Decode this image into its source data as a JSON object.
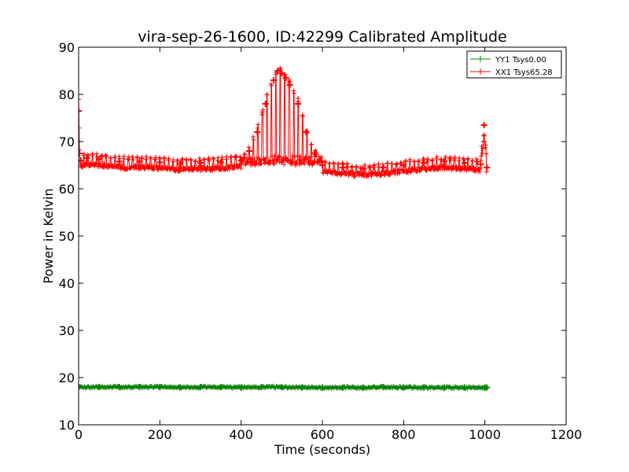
{
  "chart_data": {
    "type": "line",
    "title": "vira-sep-26-1600, ID:42299 Calibrated Amplitude",
    "xlabel": "Time (seconds)",
    "ylabel": "Power in Kelvin",
    "xlim": [
      0,
      1200
    ],
    "ylim": [
      10,
      90
    ],
    "xticks": [
      0,
      200,
      400,
      600,
      800,
      1000,
      1200
    ],
    "yticks": [
      10,
      20,
      30,
      40,
      50,
      60,
      70,
      80,
      90
    ],
    "legend_position": "top-right",
    "grid": false,
    "series": [
      {
        "name": "YY1 Tsys0.00",
        "color": "#008000",
        "marker": "plus",
        "x": [
          0,
          50,
          100,
          150,
          200,
          250,
          300,
          350,
          400,
          450,
          500,
          550,
          600,
          650,
          700,
          750,
          800,
          850,
          900,
          950,
          1000,
          1005
        ],
        "y": [
          18.0,
          18.0,
          18.0,
          18.0,
          18.0,
          17.9,
          18.0,
          18.0,
          17.9,
          18.0,
          18.0,
          17.9,
          17.9,
          17.9,
          17.9,
          18.0,
          17.9,
          17.9,
          17.9,
          17.9,
          17.9,
          17.9
        ],
        "noise": 0.4
      },
      {
        "name": "XX1 Tsys65.28",
        "color": "#ff0000",
        "marker": "plus",
        "x": [
          0,
          2,
          5,
          20,
          50,
          100,
          150,
          200,
          250,
          300,
          350,
          400,
          420,
          440,
          460,
          480,
          490,
          500,
          510,
          520,
          540,
          560,
          580,
          600,
          650,
          700,
          750,
          800,
          850,
          900,
          950,
          990,
          998,
          1005
        ],
        "y": [
          76.5,
          67.5,
          66.0,
          66.5,
          66.3,
          65.8,
          65.8,
          65.6,
          65.3,
          65.5,
          65.6,
          66.0,
          68.0,
          72.0,
          78.0,
          83.0,
          85.0,
          84.5,
          83.5,
          82.0,
          78.0,
          72.0,
          67.5,
          65.0,
          64.5,
          64.2,
          64.5,
          65.0,
          65.5,
          65.8,
          65.5,
          65.2,
          73.5,
          64.5
        ],
        "noise": 1.5
      }
    ]
  }
}
